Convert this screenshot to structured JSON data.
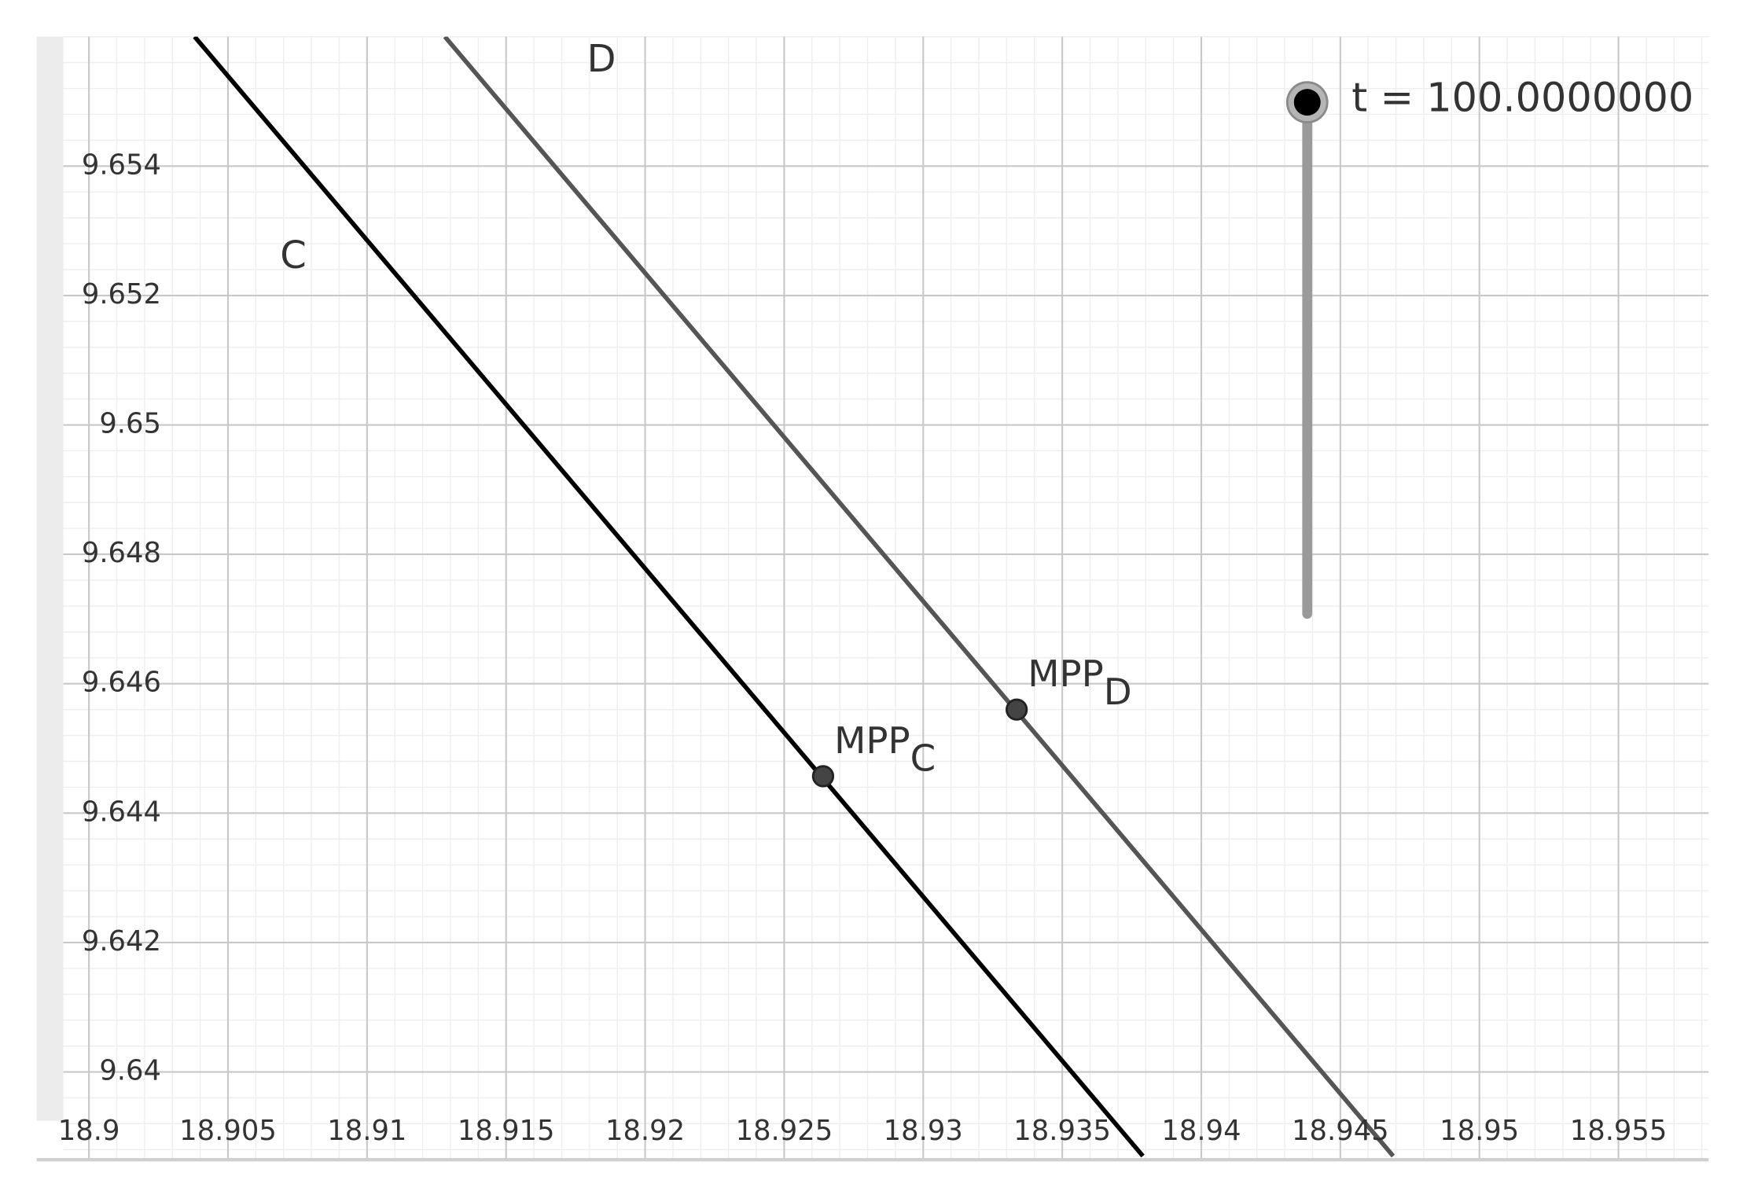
{
  "chart_data": {
    "type": "line",
    "xlim": [
      18.89908,
      18.95824
    ],
    "ylim": [
      9.63866,
      9.656
    ],
    "xticks": [
      18.9,
      18.905,
      18.91,
      18.915,
      18.92,
      18.925,
      18.93,
      18.935,
      18.94,
      18.945,
      18.95,
      18.955
    ],
    "yticks": [
      9.64,
      9.642,
      9.644,
      9.646,
      9.648,
      9.65,
      9.652,
      9.654
    ],
    "grid": true,
    "minor_grid": true,
    "series": [
      {
        "name": "C",
        "color": "#000000",
        "x": [
          18.9038,
          18.9379
        ],
        "values": [
          9.656,
          9.6387
        ]
      },
      {
        "name": "D",
        "color": "#555555",
        "x": [
          18.9128,
          18.9469
        ],
        "values": [
          9.656,
          9.6387
        ]
      }
    ],
    "points": [
      {
        "label": "MPP",
        "subscript": "C",
        "x": 18.9264,
        "y": 9.64457
      },
      {
        "label": "MPP",
        "subscript": "D",
        "x": 18.93336,
        "y": 9.6456
      }
    ],
    "slider": {
      "label": "t = 100.0000000"
    }
  }
}
